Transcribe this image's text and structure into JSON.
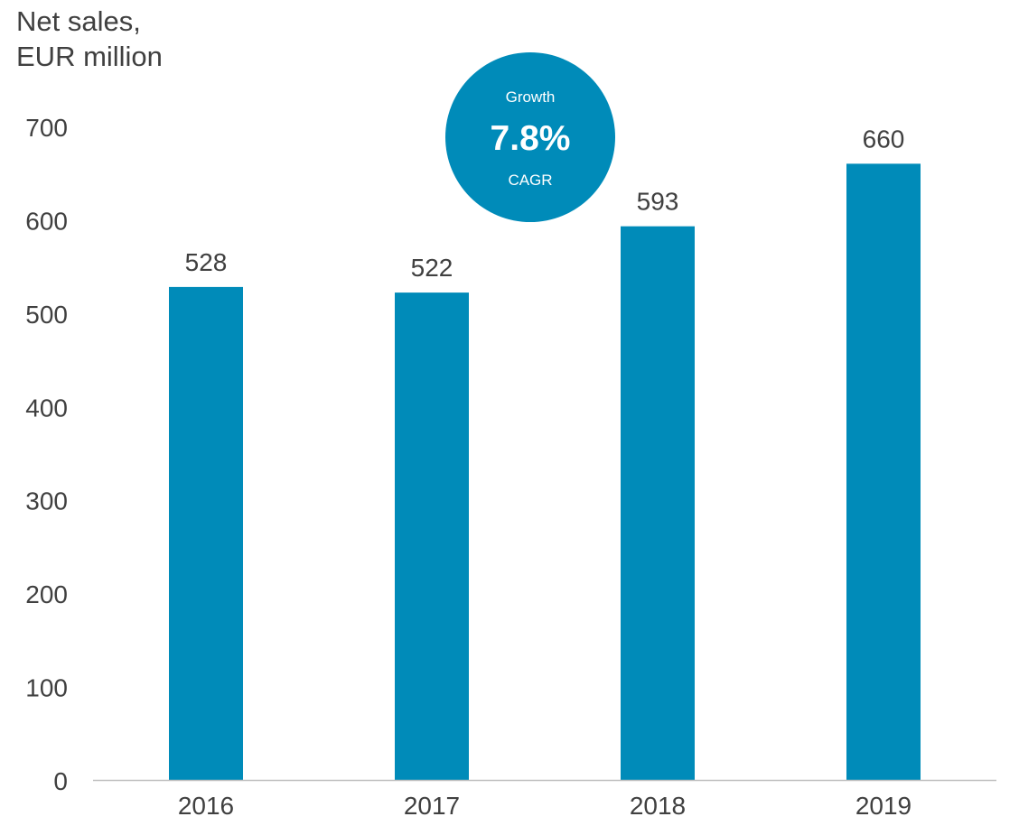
{
  "title_lines": [
    "Net sales,",
    "EUR million"
  ],
  "badge": {
    "top_text": "Growth",
    "value_text": "7.8%",
    "bottom_text": "CAGR",
    "color": "#008bb9"
  },
  "colors": {
    "bar": "#008bb9",
    "text": "#404040",
    "axis": "#bfbfbf"
  },
  "chart_data": {
    "type": "bar",
    "title": "",
    "ylabel": "Net sales, EUR million",
    "xlabel": "",
    "categories": [
      "2016",
      "2017",
      "2018",
      "2019"
    ],
    "values": [
      528,
      522,
      593,
      660
    ],
    "data_labels": [
      "528",
      "522",
      "593",
      "660"
    ],
    "ylim": [
      0,
      700
    ],
    "yticks": [
      0,
      100,
      200,
      300,
      400,
      500,
      600,
      700
    ],
    "grid": false,
    "legend": "none"
  }
}
